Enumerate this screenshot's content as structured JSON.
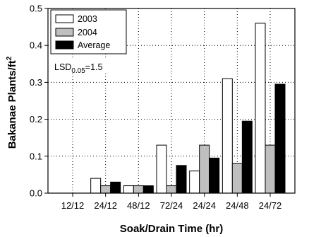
{
  "chart_data": {
    "type": "bar",
    "xlabel": "Soak/Drain Time (hr)",
    "ylabel": "Bakanae Plants/ft",
    "ylabel_superscript": "2",
    "ylim": [
      0,
      0.5
    ],
    "yticks": [
      "0.0",
      "0.1",
      "0.2",
      "0.3",
      "0.4",
      "0.5"
    ],
    "ytick_values": [
      0,
      0.1,
      0.2,
      0.3,
      0.4,
      0.5
    ],
    "categories": [
      "12/12",
      "24/12",
      "48/12",
      "72/24",
      "24/24",
      "24/48",
      "24/72"
    ],
    "series": [
      {
        "name": "2003",
        "color": "#ffffff",
        "values": [
          0,
          0.04,
          0.02,
          0.13,
          0.06,
          0.31,
          0.46
        ]
      },
      {
        "name": "2004",
        "color": "#bfbfbf",
        "values": [
          0,
          0.02,
          0.02,
          0.02,
          0.13,
          0.08,
          0.13
        ]
      },
      {
        "name": "Average",
        "color": "#000000",
        "values": [
          0,
          0.03,
          0.02,
          0.075,
          0.095,
          0.195,
          0.295
        ]
      }
    ],
    "grid": "dotted",
    "legend_position": "top-left",
    "annotation": {
      "prefix": "LSD",
      "subscript": "0.05",
      "suffix": "=1.5"
    }
  }
}
